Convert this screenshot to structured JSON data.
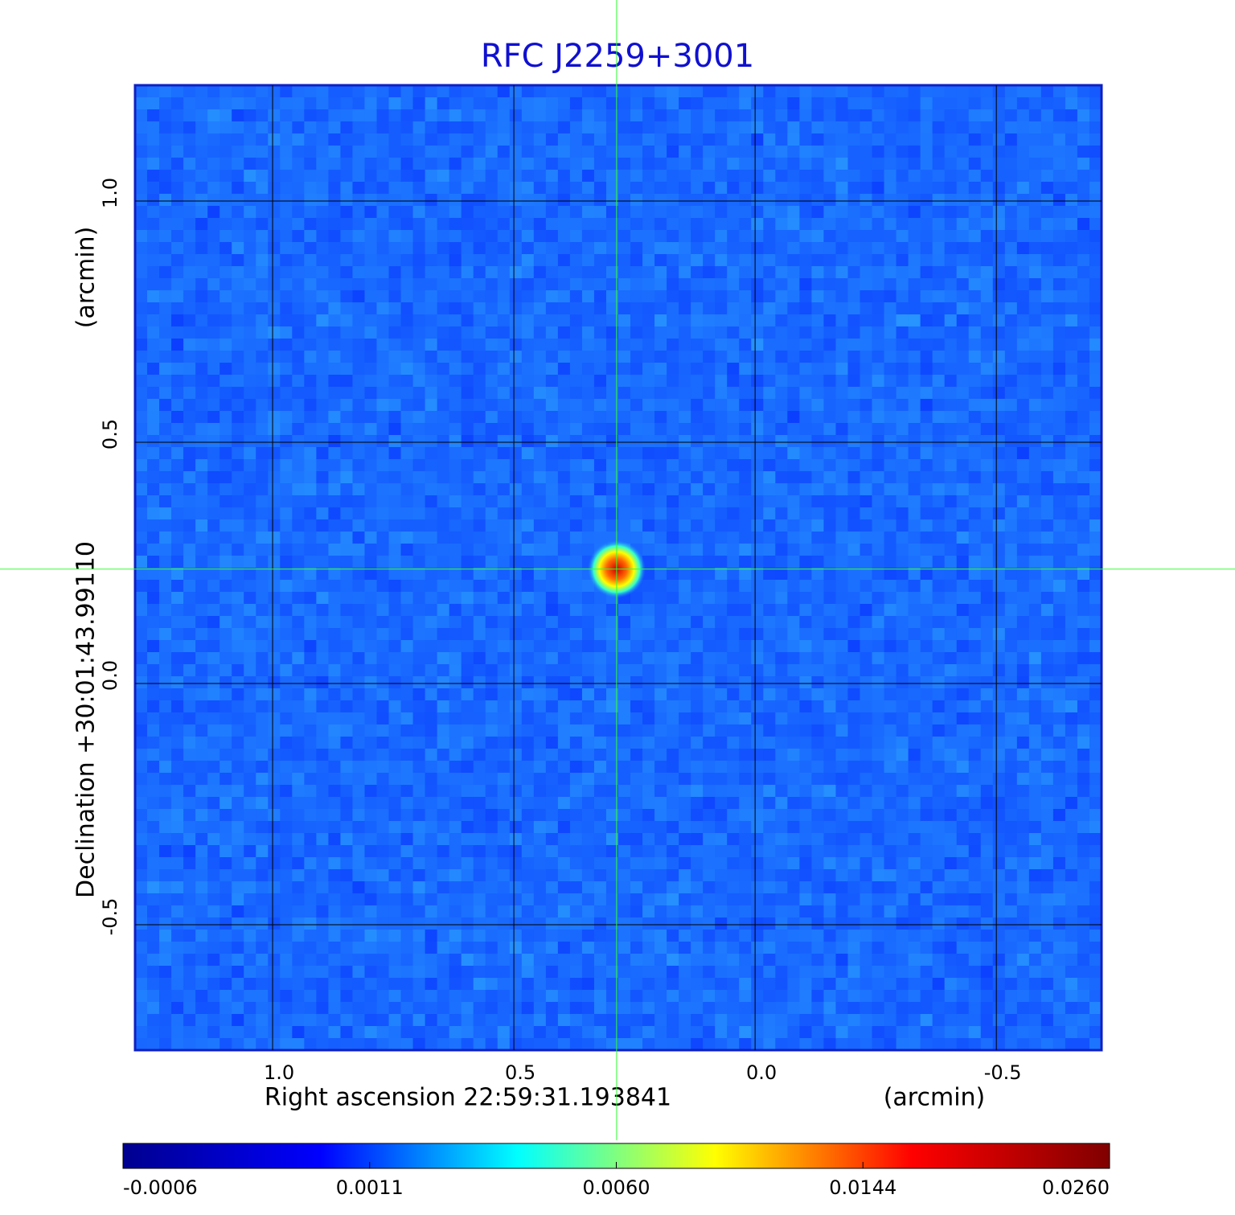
{
  "chart_data": {
    "type": "image",
    "title": "RFC J2259+3001",
    "xlabel": "Right ascension  22:59:31.193841",
    "xunit": "(arcmin)",
    "ylabel": "Declination  +30:01:43.99110",
    "yunit": "(arcmin)",
    "xlim": [
      1.285,
      -0.718
    ],
    "ylim": [
      -0.76,
      1.24
    ],
    "xticks": [
      {
        "value": 1,
        "label": "1.0"
      },
      0.5,
      {
        "value": 0,
        "label": "0.0"
      },
      -0.5
    ],
    "yticks": [
      {
        "value": 1,
        "label": "1.0"
      },
      0.5,
      {
        "value": 0,
        "label": "0.0"
      },
      -0.5
    ],
    "grid": true,
    "crosshair": {
      "x": 0.287,
      "y": 0.237,
      "color": "#33ff33"
    },
    "colormap": [
      "#00008f",
      "#0000ff",
      "#00ffff",
      "#ffff00",
      "#ff0000",
      "#800000"
    ],
    "colorbar_ticks": [
      {
        "value": -0.0006,
        "label": "-0.0006"
      },
      {
        "value": 0.0011,
        "label": "0.0011"
      },
      {
        "value": 0.006,
        "label": "0.0060"
      },
      {
        "value": 0.0144,
        "label": "0.0144"
      },
      {
        "value": 0.026,
        "label": "0.0260"
      }
    ]
  }
}
